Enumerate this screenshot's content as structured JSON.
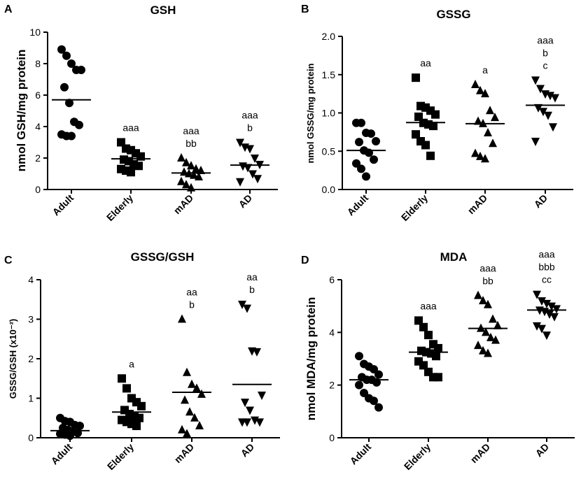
{
  "chart_data": [
    {
      "panel": "A",
      "type": "scatter",
      "title": "GSH",
      "ylabel": "nmol GSH/mg protein",
      "ylim": [
        0,
        10
      ],
      "yticks": [
        "0",
        "2",
        "4",
        "6",
        "8",
        "10"
      ],
      "categories": [
        "Adult",
        "Elderly",
        "mAD",
        "AD"
      ],
      "marker": [
        "circle",
        "square",
        "triangle-up",
        "triangle-down"
      ],
      "points": [
        [
          8.9,
          8.5,
          8.0,
          7.6,
          7.6,
          6.5,
          5.5,
          4.3,
          4.1,
          3.5,
          3.4,
          3.4
        ],
        [
          3.0,
          2.6,
          2.5,
          2.3,
          2.1,
          1.9,
          1.8,
          1.6,
          1.5,
          1.3,
          1.2,
          1.1
        ],
        [
          2.0,
          1.7,
          1.5,
          1.3,
          1.2,
          1.1,
          1.0,
          0.9,
          0.8,
          0.5,
          0.3,
          0.1
        ],
        [
          3.0,
          2.7,
          2.6,
          2.0,
          1.6,
          1.5,
          1.4,
          1.0,
          0.7,
          0.5
        ]
      ],
      "means": [
        5.7,
        1.95,
        1.05,
        1.55
      ],
      "significance": [
        [],
        [
          "aaa"
        ],
        [
          "aaa",
          "bb"
        ],
        [
          "aaa",
          "b"
        ]
      ]
    },
    {
      "panel": "B",
      "type": "scatter",
      "title": "GSSG",
      "ylabel": "nmol GSSG/mg protein",
      "ylim": [
        0,
        2
      ],
      "yticks": [
        "0.0",
        "0.5",
        "1.0",
        "1.5",
        "2.0"
      ],
      "categories": [
        "Adult",
        "Elderly",
        "mAD",
        "AD"
      ],
      "marker": [
        "circle",
        "square",
        "triangle-up",
        "triangle-down"
      ],
      "points": [
        [
          0.87,
          0.87,
          0.74,
          0.73,
          0.63,
          0.62,
          0.51,
          0.48,
          0.39,
          0.34,
          0.27,
          0.17
        ],
        [
          1.46,
          1.09,
          1.07,
          1.03,
          0.98,
          0.95,
          0.87,
          0.85,
          0.83,
          0.72,
          0.63,
          0.58,
          0.44
        ],
        [
          1.37,
          1.29,
          1.25,
          1.03,
          0.94,
          0.89,
          0.86,
          0.74,
          0.6,
          0.47,
          0.43,
          0.4
        ],
        [
          1.43,
          1.32,
          1.25,
          1.23,
          1.2,
          1.07,
          1.02,
          0.97,
          0.82,
          0.63
        ]
      ],
      "means": [
        0.51,
        0.875,
        0.86,
        1.1
      ],
      "significance": [
        [],
        [
          "aa"
        ],
        [
          "a"
        ],
        [
          "aaa",
          "b",
          "c"
        ]
      ]
    },
    {
      "panel": "C",
      "type": "scatter",
      "title": "GSSG/GSH",
      "ylabel": "GSSG/GSH (x10⁻²)",
      "ylim": [
        0,
        4
      ],
      "yticks": [
        "0",
        "1",
        "2",
        "3",
        "4"
      ],
      "categories": [
        "Adult",
        "Elderly",
        "mAD",
        "AD"
      ],
      "marker": [
        "circle",
        "square",
        "triangle-up",
        "triangle-down"
      ],
      "points": [
        [
          0.5,
          0.42,
          0.4,
          0.32,
          0.3,
          0.25,
          0.2,
          0.15,
          0.12,
          0.1,
          0.08,
          0.05
        ],
        [
          1.5,
          1.25,
          1.0,
          0.9,
          0.8,
          0.7,
          0.6,
          0.55,
          0.5,
          0.45,
          0.4,
          0.35,
          0.3
        ],
        [
          3.0,
          1.65,
          1.35,
          1.25,
          1.1,
          0.95,
          0.65,
          0.5,
          0.3,
          0.2,
          0.1
        ],
        [
          3.38,
          3.28,
          2.2,
          2.18,
          1.08,
          0.9,
          0.7,
          0.45,
          0.4,
          0.4,
          0.4
        ]
      ],
      "means": [
        0.18,
        0.65,
        1.15,
        1.35
      ],
      "significance": [
        [],
        [
          "a"
        ],
        [
          "aa",
          "b"
        ],
        [
          "aa",
          "b"
        ]
      ]
    },
    {
      "panel": "D",
      "type": "scatter",
      "title": "MDA",
      "ylabel": "nmol MDA/mg protein",
      "ylim": [
        0,
        6
      ],
      "yticks": [
        "0",
        "2",
        "4",
        "6"
      ],
      "categories": [
        "Adult",
        "Elderly",
        "mAD",
        "AD"
      ],
      "marker": [
        "circle",
        "square",
        "triangle-up",
        "triangle-down"
      ],
      "points": [
        [
          3.1,
          2.8,
          2.7,
          2.6,
          2.4,
          2.3,
          2.2,
          2.2,
          2.1,
          2.0,
          1.7,
          1.5,
          1.4,
          1.15
        ],
        [
          4.45,
          4.2,
          3.9,
          3.55,
          3.4,
          3.3,
          3.25,
          3.2,
          3.1,
          2.9,
          2.75,
          2.5,
          2.3,
          2.3
        ],
        [
          5.4,
          5.2,
          5.05,
          4.5,
          4.25,
          4.15,
          4.0,
          3.8,
          3.7,
          3.5,
          3.3,
          3.2
        ],
        [
          5.45,
          5.2,
          5.1,
          5.0,
          4.9,
          4.85,
          4.8,
          4.7,
          4.6,
          4.25,
          4.15,
          3.9
        ]
      ],
      "means": [
        2.2,
        3.25,
        4.15,
        4.85
      ],
      "significance": [
        [],
        [
          "aaa"
        ],
        [
          "aaa",
          "bb"
        ],
        [
          "aaa",
          "bbb",
          "cc"
        ]
      ]
    }
  ]
}
